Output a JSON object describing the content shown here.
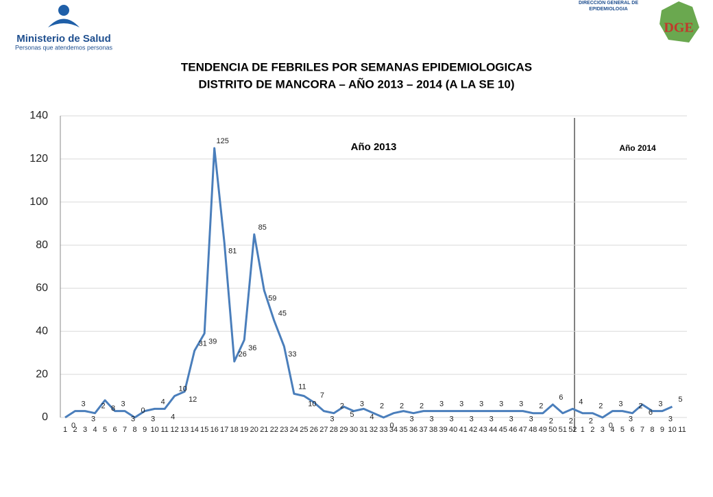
{
  "header": {
    "ministry": "Ministerio de Salud",
    "slogan": "Personas que atendemos personas",
    "agency": "DIRECCIÓN GENERAL DE EPIDEMIOLOGIA",
    "agency_logo": "DGE"
  },
  "chart_data": {
    "type": "line",
    "title": "TENDENCIA DE FEBRILES POR SEMANAS EPIDEMIOLOGICAS",
    "subtitle": "DISTRITO DE MANCORA – AÑO 2013 – 2014 (A LA SE 10)",
    "annotations": [
      "Año 2013",
      "Año 2014"
    ],
    "categories": [
      "1",
      "2",
      "3",
      "4",
      "5",
      "6",
      "7",
      "8",
      "9",
      "10",
      "11",
      "12",
      "13",
      "14",
      "15",
      "16",
      "17",
      "18",
      "19",
      "20",
      "21",
      "22",
      "23",
      "24",
      "25",
      "26",
      "27",
      "28",
      "29",
      "30",
      "31",
      "32",
      "33",
      "34",
      "35",
      "36",
      "37",
      "38",
      "39",
      "40",
      "41",
      "42",
      "43",
      "44",
      "45",
      "46",
      "47",
      "48",
      "49",
      "50",
      "51",
      "52",
      "1",
      "2",
      "3",
      "4",
      "5",
      "6",
      "7",
      "8",
      "9",
      "10",
      "11"
    ],
    "values": [
      0,
      3,
      3,
      2,
      8,
      3,
      3,
      0,
      3,
      4,
      4,
      10,
      12,
      31,
      39,
      125,
      81,
      26,
      36,
      85,
      59,
      45,
      33,
      11,
      10,
      7,
      3,
      2,
      5,
      3,
      4,
      2,
      0,
      2,
      3,
      2,
      3,
      3,
      3,
      3,
      3,
      3,
      3,
      3,
      3,
      3,
      3,
      2,
      2,
      6,
      2,
      4,
      2,
      2,
      0,
      3,
      3,
      2,
      6,
      3,
      3,
      5,
      null
    ],
    "color": "#4a7ebb",
    "ylim": [
      0,
      140
    ],
    "yticks": [
      0,
      20,
      40,
      60,
      80,
      100,
      120,
      140
    ],
    "grid": true
  }
}
